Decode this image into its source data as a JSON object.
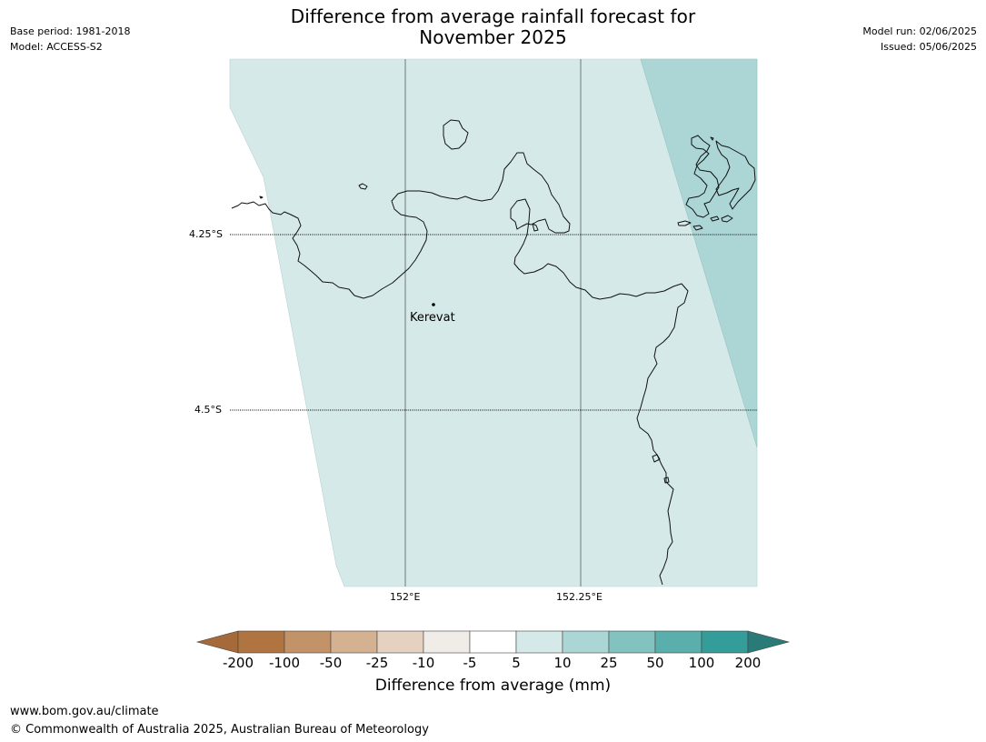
{
  "title_line1": "Difference from average rainfall forecast for",
  "title_line2": "November 2025",
  "meta_left": {
    "base_period": "Base period: 1981-2018",
    "model": "Model: ACCESS-S2"
  },
  "meta_right": {
    "model_run": "Model run: 02/06/2025",
    "issued": "Issued: 05/06/2025"
  },
  "map": {
    "lat_labels": [
      "4.25°S",
      "4.5°S"
    ],
    "lon_labels": [
      "152°E",
      "152.25°E"
    ],
    "place": "Kerevat",
    "colors": {
      "light_teal": "#d5e9e8",
      "mid_teal": "#acd6d5"
    }
  },
  "colorbar": {
    "title": "Difference from average (mm)",
    "tick_labels": [
      "-200",
      "-100",
      "-50",
      "-25",
      "-10",
      "-5",
      "5",
      "10",
      "25",
      "50",
      "100",
      "200"
    ],
    "colors": [
      "#a5693a",
      "#b07440",
      "#c29268",
      "#d4b291",
      "#e5d1bf",
      "#f0ece8",
      "#ffffff",
      "#d5e9e8",
      "#acd6d5",
      "#82c2bf",
      "#5aaeac",
      "#349c99",
      "#2a7b78"
    ]
  },
  "footer": {
    "url": "www.bom.gov.au/climate",
    "copyright": "© Commonwealth of Australia 2025, Australian Bureau of Meteorology"
  }
}
